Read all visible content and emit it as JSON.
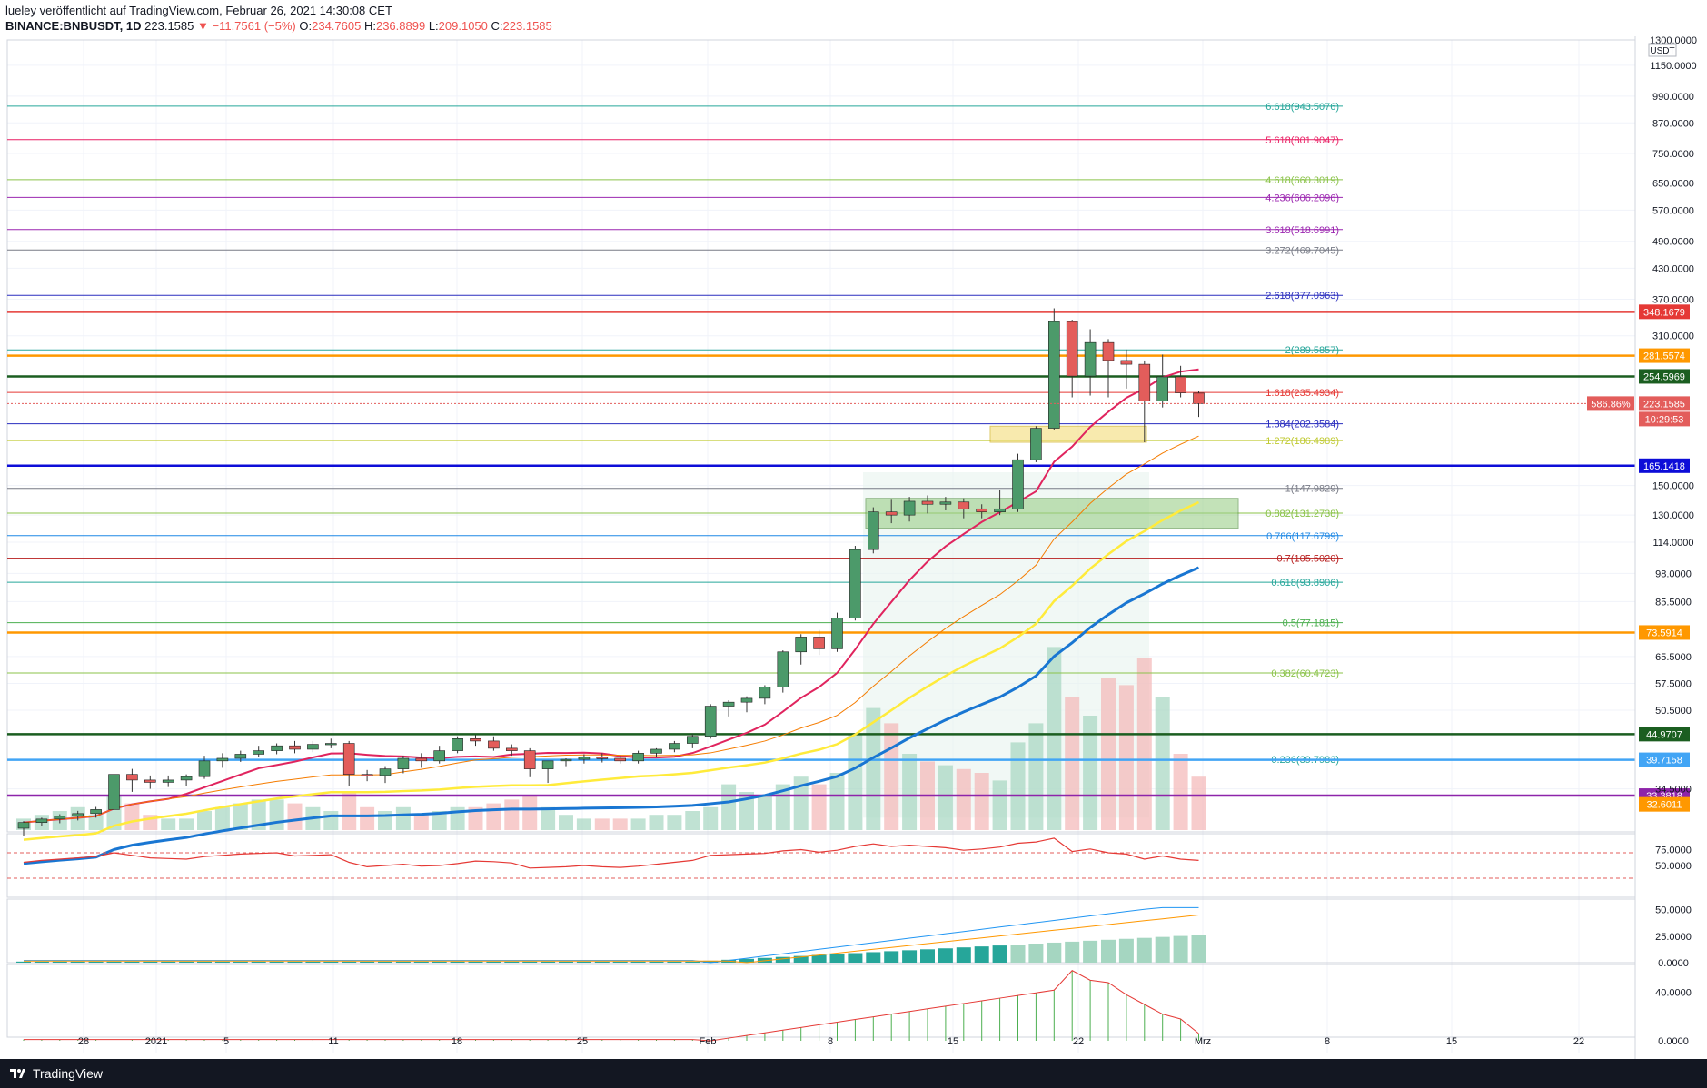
{
  "header": {
    "published": "lueley veröffentlicht auf TradingView.com, Februar 26, 2021 14:30:08 CET",
    "symbol": "BINANCE:BNBUSDT, 1D",
    "last": "223.1585",
    "change": "▼ −11.7561 (−5%)",
    "o_label": "O:",
    "o": "234.7605",
    "h_label": "H:",
    "h": "236.8899",
    "l_label": "L:",
    "l": "209.1050",
    "c_label": "C:",
    "c": "223.1585"
  },
  "footer": {
    "brand": "TradingView"
  },
  "colors": {
    "up": "#4c9a6a",
    "down": "#e35d5b",
    "grid": "#f0f3fa",
    "axis_text": "#131722"
  },
  "chart_data": {
    "type": "candlestick",
    "symbol": "BINANCE:BNBUSDT",
    "interval": "1D",
    "price_unit": "USDT",
    "scale": "log",
    "x_ticks": [
      "28",
      "2021",
      "5",
      "11",
      "18",
      "25",
      "Feb",
      "8",
      "15",
      "22",
      "Mrz",
      "8",
      "15",
      "22"
    ],
    "y_ticks": [
      "1150.0000",
      "990.0000",
      "870.0000",
      "750.0000",
      "650.0000",
      "570.0000",
      "490.0000",
      "430.0000",
      "370.0000",
      "310.0000",
      "150.0000",
      "130.0000",
      "114.0000",
      "98.0000",
      "85.5000",
      "65.5000",
      "57.5000",
      "50.5000",
      "34.5000"
    ],
    "y_range": [
      28,
      1300
    ],
    "candles": [
      {
        "o": 28.5,
        "h": 29.5,
        "l": 27.5,
        "c": 29.3
      },
      {
        "o": 29.3,
        "h": 30.0,
        "l": 28.8,
        "c": 29.8
      },
      {
        "o": 29.8,
        "h": 30.5,
        "l": 29.2,
        "c": 30.2
      },
      {
        "o": 30.2,
        "h": 31.0,
        "l": 29.6,
        "c": 30.6
      },
      {
        "o": 30.6,
        "h": 31.6,
        "l": 30.0,
        "c": 31.2
      },
      {
        "o": 31.2,
        "h": 37.5,
        "l": 31.0,
        "c": 37.0
      },
      {
        "o": 37.0,
        "h": 38.0,
        "l": 34.0,
        "c": 36.0
      },
      {
        "o": 36.0,
        "h": 36.8,
        "l": 34.5,
        "c": 35.6
      },
      {
        "o": 35.6,
        "h": 36.8,
        "l": 34.8,
        "c": 36.0
      },
      {
        "o": 36.0,
        "h": 37.0,
        "l": 35.0,
        "c": 36.6
      },
      {
        "o": 36.6,
        "h": 40.5,
        "l": 36.2,
        "c": 39.5
      },
      {
        "o": 39.5,
        "h": 41.0,
        "l": 38.2,
        "c": 40.0
      },
      {
        "o": 40.0,
        "h": 41.5,
        "l": 39.3,
        "c": 40.8
      },
      {
        "o": 40.8,
        "h": 42.5,
        "l": 40.3,
        "c": 41.5
      },
      {
        "o": 41.5,
        "h": 43.0,
        "l": 40.8,
        "c": 42.5
      },
      {
        "o": 42.5,
        "h": 43.5,
        "l": 41.0,
        "c": 41.8
      },
      {
        "o": 41.8,
        "h": 43.5,
        "l": 41.2,
        "c": 42.8
      },
      {
        "o": 42.8,
        "h": 44.0,
        "l": 42.0,
        "c": 43.0
      },
      {
        "o": 43.0,
        "h": 43.5,
        "l": 35.0,
        "c": 37.0
      },
      {
        "o": 37.0,
        "h": 37.8,
        "l": 35.8,
        "c": 36.8
      },
      {
        "o": 36.8,
        "h": 38.5,
        "l": 35.5,
        "c": 38.0
      },
      {
        "o": 38.0,
        "h": 40.5,
        "l": 37.2,
        "c": 40.0
      },
      {
        "o": 40.0,
        "h": 41.0,
        "l": 38.2,
        "c": 39.5
      },
      {
        "o": 39.5,
        "h": 42.5,
        "l": 39.0,
        "c": 41.5
      },
      {
        "o": 41.5,
        "h": 44.5,
        "l": 41.0,
        "c": 44.0
      },
      {
        "o": 44.0,
        "h": 44.8,
        "l": 42.5,
        "c": 43.5
      },
      {
        "o": 43.5,
        "h": 44.5,
        "l": 41.5,
        "c": 42.0
      },
      {
        "o": 42.0,
        "h": 42.8,
        "l": 40.5,
        "c": 41.5
      },
      {
        "o": 41.5,
        "h": 42.0,
        "l": 36.5,
        "c": 38.0
      },
      {
        "o": 38.0,
        "h": 39.0,
        "l": 35.5,
        "c": 39.5
      },
      {
        "o": 39.5,
        "h": 40.0,
        "l": 38.5,
        "c": 39.8
      },
      {
        "o": 39.8,
        "h": 40.8,
        "l": 39.0,
        "c": 40.2
      },
      {
        "o": 40.2,
        "h": 41.0,
        "l": 39.2,
        "c": 40.0
      },
      {
        "o": 40.0,
        "h": 40.6,
        "l": 39.0,
        "c": 39.5
      },
      {
        "o": 39.5,
        "h": 41.5,
        "l": 39.0,
        "c": 41.0
      },
      {
        "o": 41.0,
        "h": 42.0,
        "l": 40.2,
        "c": 41.8
      },
      {
        "o": 41.8,
        "h": 43.5,
        "l": 41.2,
        "c": 43.0
      },
      {
        "o": 43.0,
        "h": 45.0,
        "l": 42.0,
        "c": 44.5
      },
      {
        "o": 44.5,
        "h": 52.0,
        "l": 44.0,
        "c": 51.5
      },
      {
        "o": 51.5,
        "h": 53.0,
        "l": 49.0,
        "c": 52.5
      },
      {
        "o": 52.5,
        "h": 54.0,
        "l": 50.0,
        "c": 53.5
      },
      {
        "o": 53.5,
        "h": 57.0,
        "l": 52.0,
        "c": 56.5
      },
      {
        "o": 56.5,
        "h": 67.5,
        "l": 55.0,
        "c": 67.0
      },
      {
        "o": 67.0,
        "h": 73.0,
        "l": 63.0,
        "c": 72.0
      },
      {
        "o": 72.0,
        "h": 74.5,
        "l": 66.0,
        "c": 68.0
      },
      {
        "o": 68.0,
        "h": 81.0,
        "l": 67.0,
        "c": 79.0
      },
      {
        "o": 79.0,
        "h": 112.0,
        "l": 78.0,
        "c": 110.0
      },
      {
        "o": 110.0,
        "h": 135.0,
        "l": 108.0,
        "c": 132.0
      },
      {
        "o": 132.0,
        "h": 140.0,
        "l": 125.0,
        "c": 130.0
      },
      {
        "o": 130.0,
        "h": 142.0,
        "l": 126.0,
        "c": 139.0
      },
      {
        "o": 139.0,
        "h": 143.0,
        "l": 131.0,
        "c": 137.0
      },
      {
        "o": 137.0,
        "h": 142.0,
        "l": 133.0,
        "c": 138.5
      },
      {
        "o": 138.5,
        "h": 141.0,
        "l": 128.0,
        "c": 134.0
      },
      {
        "o": 134.0,
        "h": 137.0,
        "l": 128.0,
        "c": 132.0
      },
      {
        "o": 132.0,
        "h": 147.0,
        "l": 130.0,
        "c": 134.0
      },
      {
        "o": 134.0,
        "h": 175.0,
        "l": 132.0,
        "c": 170.0
      },
      {
        "o": 170.0,
        "h": 200.0,
        "l": 168.0,
        "c": 198.0
      },
      {
        "o": 198.0,
        "h": 354.0,
        "l": 196.0,
        "c": 332.0
      },
      {
        "o": 332.0,
        "h": 335.0,
        "l": 230.0,
        "c": 255.0
      },
      {
        "o": 255.0,
        "h": 320.0,
        "l": 232.0,
        "c": 300.0
      },
      {
        "o": 300.0,
        "h": 305.0,
        "l": 230.0,
        "c": 275.0
      },
      {
        "o": 275.0,
        "h": 290.0,
        "l": 240.0,
        "c": 270.0
      },
      {
        "o": 270.0,
        "h": 275.0,
        "l": 185.0,
        "c": 226.0
      },
      {
        "o": 226.0,
        "h": 283.0,
        "l": 219.0,
        "c": 254.0
      },
      {
        "o": 254.0,
        "h": 268.0,
        "l": 230.0,
        "c": 235.0
      },
      {
        "o": 234.76,
        "h": 236.89,
        "l": 209.105,
        "c": 223.1585
      }
    ],
    "fib_levels": [
      {
        "label": "6.618(943.5076)",
        "value": 943.5076,
        "color": "#26a69a"
      },
      {
        "label": "5.618(801.9047)",
        "value": 801.9047,
        "color": "#e91e63"
      },
      {
        "label": "4.618(660.3019)",
        "value": 660.3019,
        "color": "#8bc34a"
      },
      {
        "label": "4.236(606.2096)",
        "value": 606.2096,
        "color": "#9c27b0"
      },
      {
        "label": "3.618(518.6991)",
        "value": 518.6991,
        "color": "#9c27b0"
      },
      {
        "label": "3.272(469.7045)",
        "value": 469.7045,
        "color": "#787b86"
      },
      {
        "label": "2.618(377.0963)",
        "value": 377.0963,
        "color": "#2a2ebf"
      },
      {
        "label": "2(289.5857)",
        "value": 289.5857,
        "color": "#26a69a"
      },
      {
        "label": "1.618(235.4934)",
        "value": 235.4934,
        "color": "#e53935"
      },
      {
        "label": "1.384(202.3584)",
        "value": 202.3584,
        "color": "#2a2ebf"
      },
      {
        "label": "1.272(186.4989)",
        "value": 186.4989,
        "color": "#c0ca33"
      },
      {
        "label": "1(147.9829)",
        "value": 147.9829,
        "color": "#787b86"
      },
      {
        "label": "0.882(131.2738)",
        "value": 131.2738,
        "color": "#8bc34a"
      },
      {
        "label": "0.786(117.6799)",
        "value": 117.6799,
        "color": "#1e88e5"
      },
      {
        "label": "0.7(105.5020)",
        "value": 105.502,
        "color": "#b71c1c"
      },
      {
        "label": "0.618(93.8906)",
        "value": 93.8906,
        "color": "#26a69a"
      },
      {
        "label": "0.5(77.1815)",
        "value": 77.1815,
        "color": "#4caf50"
      },
      {
        "label": "0.382(60.4723)",
        "value": 60.4723,
        "color": "#8bc34a"
      },
      {
        "label": "0.236(39.7983)",
        "value": 39.7983,
        "color": "#26a69a"
      }
    ],
    "h_levels": [
      {
        "value": 348.1679,
        "label": "348.1679",
        "color": "#e53935"
      },
      {
        "value": 281.5574,
        "label": "281.5574",
        "color": "#ff9800"
      },
      {
        "value": 254.5969,
        "label": "254.5969",
        "color": "#1b5e20"
      },
      {
        "value": 165.1418,
        "label": "165.1418",
        "color": "#0d0dd8"
      },
      {
        "value": 73.5914,
        "label": "73.5914",
        "color": "#ff9800"
      },
      {
        "value": 44.9707,
        "label": "44.9707",
        "color": "#1b5e20"
      },
      {
        "value": 39.7158,
        "label": "39.7158",
        "color": "#42a5f5"
      },
      {
        "value": 33.3818,
        "label": "33.3818",
        "color": "#8e24aa"
      }
    ],
    "price_tags": [
      {
        "label": "586.86%",
        "color": "#e35d5b"
      },
      {
        "label": "223.1585",
        "color": "#e35d5b"
      },
      {
        "label": "10:29:53",
        "color": "#e35d5b"
      },
      {
        "label": "32.6011",
        "color": "#ff9800"
      }
    ],
    "axis_unit_label": "USDT",
    "top_tick": "1300.0000",
    "panels": [
      {
        "name": "rsi",
        "ticks": [
          "75.0000",
          "50.0000"
        ]
      },
      {
        "name": "dmi",
        "ticks": [
          "50.0000",
          "25.0000",
          "0.0000"
        ]
      },
      {
        "name": "osc",
        "ticks": [
          "40.0000",
          "0.0000"
        ]
      }
    ]
  }
}
